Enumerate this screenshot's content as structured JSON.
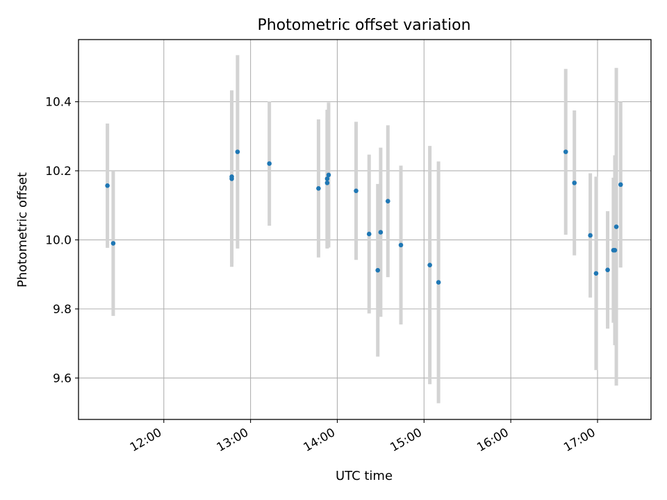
{
  "chart_data": {
    "type": "scatter",
    "title": "Photometric offset variation",
    "xlabel": "UTC time",
    "ylabel": "Photometric offset",
    "xlim": [
      "11:01",
      "17:37"
    ],
    "ylim": [
      9.48,
      10.58
    ],
    "x_ticks": [
      "12:00",
      "13:00",
      "14:00",
      "15:00",
      "16:00",
      "17:00"
    ],
    "y_ticks": [
      "9.6",
      "9.8",
      "10.0",
      "10.2",
      "10.4"
    ],
    "grid": true,
    "point_color": "#1f77b4",
    "errorbar_color": "#d3d3d3",
    "points": [
      {
        "x": "11:21",
        "y": 10.157,
        "err": 0.18
      },
      {
        "x": "11:25",
        "y": 9.99,
        "err": 0.21
      },
      {
        "x": "12:47",
        "y": 10.177,
        "err": 0.255
      },
      {
        "x": "12:47",
        "y": 10.183,
        "err": 0.25
      },
      {
        "x": "12:51",
        "y": 10.255,
        "err": 0.28
      },
      {
        "x": "13:13",
        "y": 10.221,
        "err": 0.18
      },
      {
        "x": "13:47",
        "y": 10.149,
        "err": 0.2
      },
      {
        "x": "13:53",
        "y": 10.165,
        "err": 0.19
      },
      {
        "x": "13:53",
        "y": 10.177,
        "err": 0.2
      },
      {
        "x": "13:54",
        "y": 10.188,
        "err": 0.21
      },
      {
        "x": "14:13",
        "y": 10.142,
        "err": 0.2
      },
      {
        "x": "14:22",
        "y": 10.017,
        "err": 0.23
      },
      {
        "x": "14:28",
        "y": 9.912,
        "err": 0.25
      },
      {
        "x": "14:30",
        "y": 10.022,
        "err": 0.245
      },
      {
        "x": "14:35",
        "y": 10.112,
        "err": 0.22
      },
      {
        "x": "14:44",
        "y": 9.985,
        "err": 0.23
      },
      {
        "x": "15:04",
        "y": 9.927,
        "err": 0.345
      },
      {
        "x": "15:10",
        "y": 9.877,
        "err": 0.35
      },
      {
        "x": "16:38",
        "y": 10.255,
        "err": 0.24
      },
      {
        "x": "16:44",
        "y": 10.165,
        "err": 0.21
      },
      {
        "x": "16:55",
        "y": 10.013,
        "err": 0.18
      },
      {
        "x": "16:59",
        "y": 9.903,
        "err": 0.28
      },
      {
        "x": "17:07",
        "y": 9.913,
        "err": 0.17
      },
      {
        "x": "17:11",
        "y": 9.97,
        "err": 0.21
      },
      {
        "x": "17:12",
        "y": 9.97,
        "err": 0.275
      },
      {
        "x": "17:13",
        "y": 10.038,
        "err": 0.46
      },
      {
        "x": "17:16",
        "y": 10.16,
        "err": 0.24
      }
    ]
  }
}
